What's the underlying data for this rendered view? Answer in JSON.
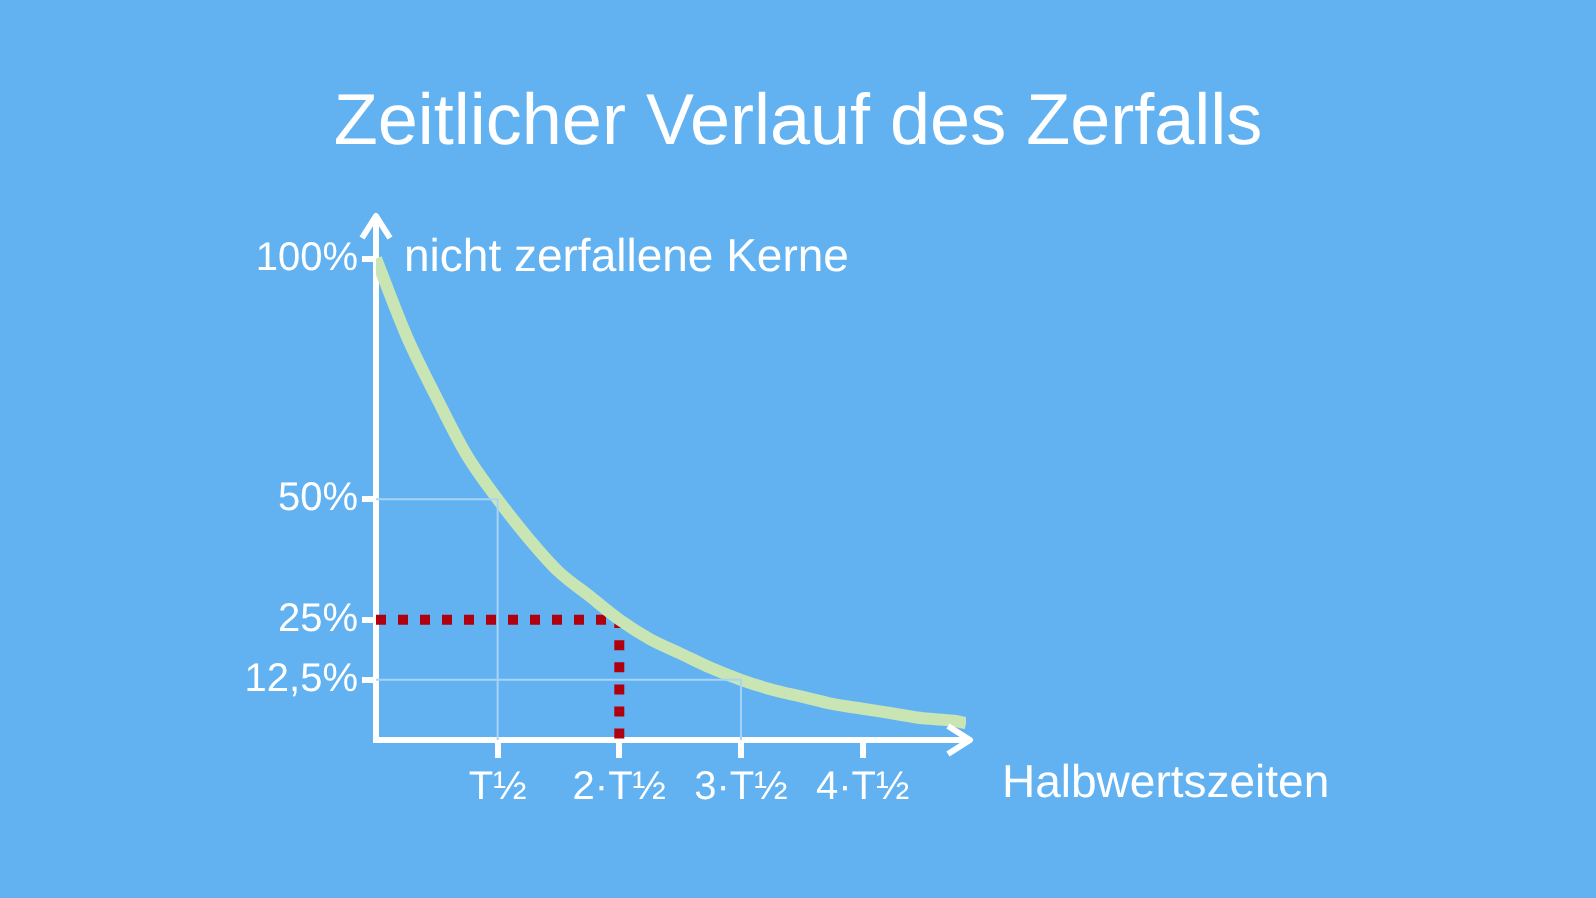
{
  "chart_data": {
    "type": "line",
    "title": "Zeitlicher Verlauf des Zerfalls",
    "xlabel": "Halbwertszeiten",
    "ylabel": "nicht zerfallene Kerne",
    "xlim": [
      0,
      4.85
    ],
    "ylim": [
      0,
      108
    ],
    "xticks": [
      {
        "value": 1,
        "label": "T½"
      },
      {
        "value": 2,
        "label": "2·T½"
      },
      {
        "value": 3,
        "label": "3·T½"
      },
      {
        "value": 4,
        "label": "4·T½"
      }
    ],
    "yticks": [
      {
        "value": 12.5,
        "label": "12,5%"
      },
      {
        "value": 25,
        "label": "25%"
      },
      {
        "value": 50,
        "label": "50%"
      },
      {
        "value": 100,
        "label": "100%"
      }
    ],
    "marker": "none",
    "series": [
      {
        "color": "#a8d3f5",
        "line_style": "solid",
        "x": [
          0,
          1,
          1
        ],
        "values": [
          50,
          50,
          0
        ]
      },
      {
        "color": "#a8d3f5",
        "line_style": "solid",
        "x": [
          0,
          3,
          3
        ],
        "values": [
          12.5,
          12.5,
          0
        ]
      },
      {
        "color": "#c9e5b4",
        "line_style": "solid",
        "x": [
          0,
          0.25,
          0.5,
          0.75,
          1,
          1.25,
          1.5,
          1.75,
          2,
          2.25,
          2.5,
          2.75,
          3,
          3.25,
          3.5,
          3.75,
          4,
          4.25,
          4.5,
          4.75,
          4.85
        ],
        "values": [
          100,
          84,
          71,
          59,
          50,
          42,
          35,
          30,
          25,
          21,
          18,
          15,
          12.5,
          10.5,
          9,
          7.5,
          6.5,
          5.5,
          4.5,
          4,
          3.5
        ]
      },
      {
        "color": "#b0000f",
        "line_style": "dotted",
        "x": [
          0,
          2,
          2
        ],
        "values": [
          25,
          25,
          0
        ]
      }
    ]
  }
}
